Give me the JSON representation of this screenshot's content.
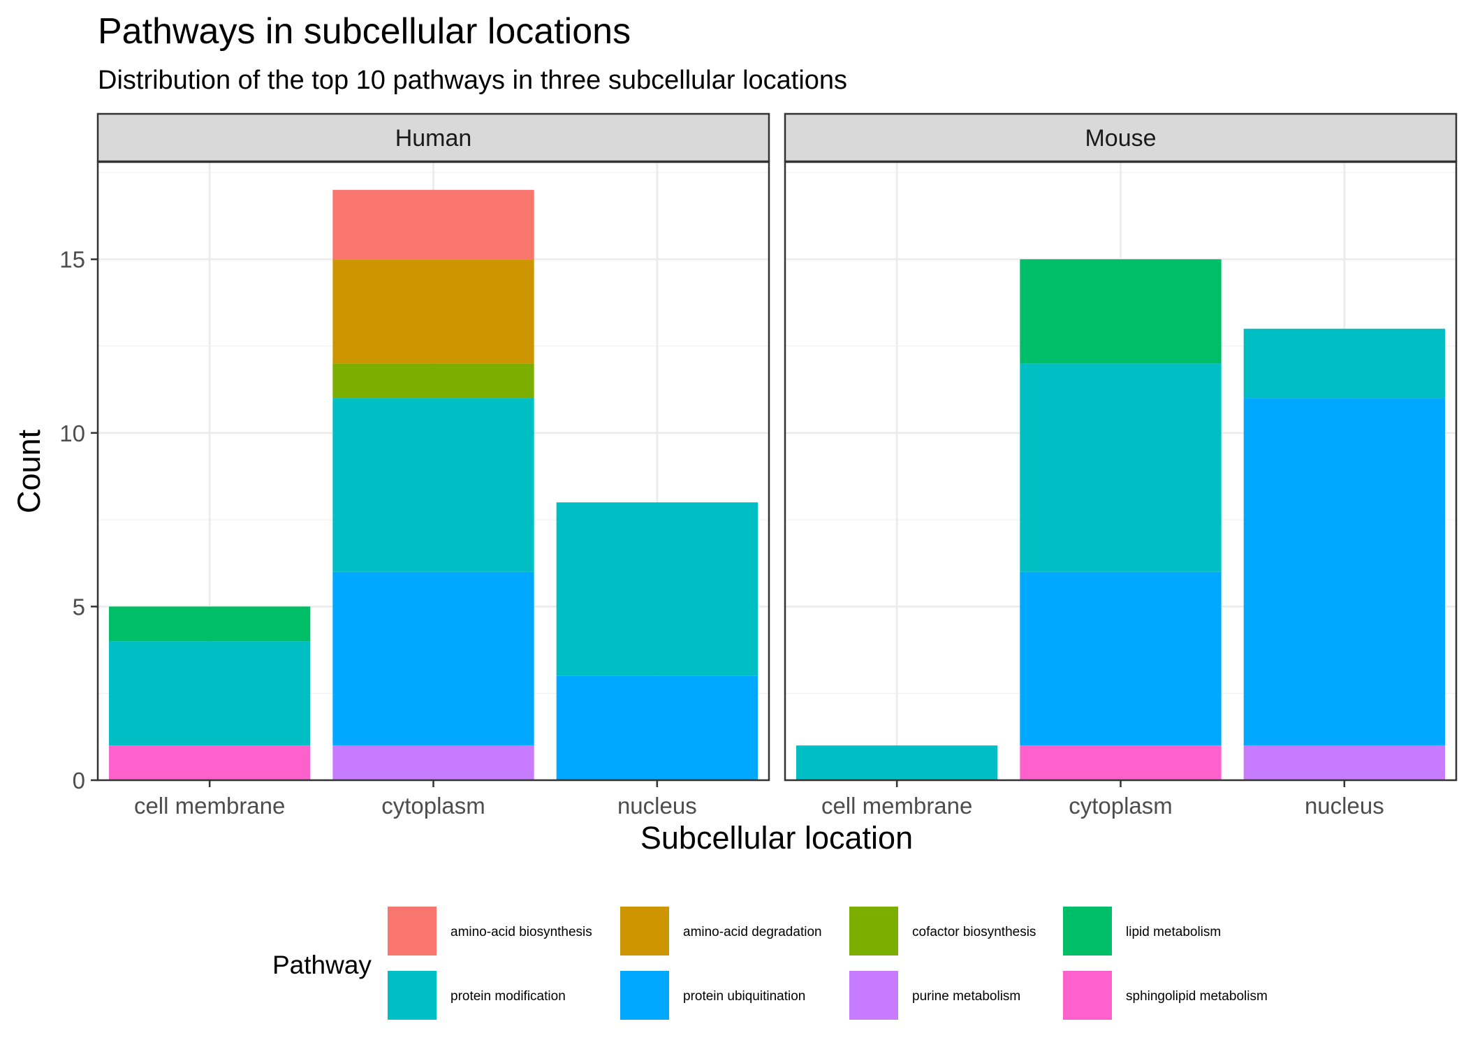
{
  "title": "Pathways in subcellular locations",
  "subtitle": "Distribution of the top 10 pathways in three subcellular locations",
  "chart_data": {
    "type": "bar",
    "stacked": true,
    "facets": [
      "Human",
      "Mouse"
    ],
    "categories": [
      "cell membrane",
      "cytoplasm",
      "nucleus"
    ],
    "xlabel": "Subcellular location",
    "ylabel": "Count",
    "ylim": [
      0,
      17.8
    ],
    "yticks": [
      0,
      5,
      10,
      15
    ],
    "grid": true,
    "legend_position": "bottom",
    "legend_title": "Pathway",
    "series": [
      {
        "name": "amino-acid biosynthesis",
        "color": "#F8766D",
        "values": {
          "Human": [
            0,
            2,
            0
          ],
          "Mouse": [
            0,
            0,
            0
          ]
        }
      },
      {
        "name": "amino-acid degradation",
        "color": "#CD9600",
        "values": {
          "Human": [
            0,
            3,
            0
          ],
          "Mouse": [
            0,
            0,
            0
          ]
        }
      },
      {
        "name": "cofactor biosynthesis",
        "color": "#7CAE00",
        "values": {
          "Human": [
            0,
            1,
            0
          ],
          "Mouse": [
            0,
            0,
            0
          ]
        }
      },
      {
        "name": "lipid metabolism",
        "color": "#00BE67",
        "values": {
          "Human": [
            1,
            0,
            0
          ],
          "Mouse": [
            0,
            3,
            0
          ]
        }
      },
      {
        "name": "protein modification",
        "color": "#00BFC4",
        "values": {
          "Human": [
            3,
            5,
            5
          ],
          "Mouse": [
            1,
            6,
            2
          ]
        }
      },
      {
        "name": "protein ubiquitination",
        "color": "#00A9FF",
        "values": {
          "Human": [
            0,
            5,
            3
          ],
          "Mouse": [
            0,
            5,
            10
          ]
        }
      },
      {
        "name": "purine metabolism",
        "color": "#C77CFF",
        "values": {
          "Human": [
            0,
            1,
            0
          ],
          "Mouse": [
            0,
            0,
            1
          ]
        }
      },
      {
        "name": "sphingolipid metabolism",
        "color": "#FF61CC",
        "values": {
          "Human": [
            1,
            0,
            0
          ],
          "Mouse": [
            0,
            1,
            0
          ]
        }
      }
    ]
  }
}
